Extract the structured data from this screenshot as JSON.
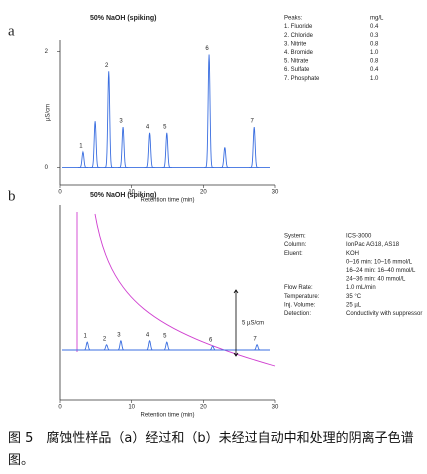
{
  "chart_data": [
    {
      "type": "chromatogram",
      "panel_label": "a",
      "title": "50% NaOH (spiking)",
      "title_color": "#2a5fd0",
      "color": "#3a6ee0",
      "x": [
        3.2,
        4.9,
        6.8,
        8.8,
        12.5,
        14.9,
        20.8,
        23,
        27.1
      ],
      "values": [
        0.27,
        0.8,
        1.66,
        0.7,
        0.6,
        0.6,
        1.95,
        0.35,
        0.7
      ],
      "peak_labels": [
        "1",
        null,
        "2",
        "3",
        "4",
        "5",
        "6",
        null,
        "7"
      ],
      "xlim": [
        0,
        30
      ],
      "xticks": [
        0,
        10,
        20,
        30
      ],
      "ylim": [
        -0.3,
        2.2
      ],
      "yticks": [
        0,
        2
      ],
      "xlabel": "Retention time (min)",
      "ylabel": "µS/cm",
      "info": [
        [
          "Peaks:",
          "mg/L"
        ],
        [
          "1. Fluoride",
          "0.4"
        ],
        [
          "2. Chloride",
          "0.3"
        ],
        [
          "3. Nitrite",
          "0.8"
        ],
        [
          "4. Bromide",
          "1.0"
        ],
        [
          "5. Nitrate",
          "0.8"
        ],
        [
          "6. Sulfate",
          "0.4"
        ],
        [
          "7. Phosphate",
          "1.0"
        ]
      ]
    },
    {
      "type": "chromatogram",
      "panel_label": "b",
      "title": "50% NaOH (spiking)",
      "title_color": "#c020c0",
      "color": "#3a6ee0",
      "x": [
        3.8,
        6.5,
        8.5,
        12.5,
        14.9,
        21.3,
        27.5
      ],
      "values": [
        0.6,
        0.4,
        0.7,
        0.7,
        0.6,
        0.3,
        0.4
      ],
      "peak_labels": [
        "1",
        "2",
        "3",
        "4",
        "5",
        "6",
        "7"
      ],
      "xlim": [
        0,
        30
      ],
      "xticks": [
        0,
        10,
        20,
        30
      ],
      "xlabel": "Retention time (min)",
      "scale_bar": {
        "value": 5,
        "label": "5 µS/cm"
      },
      "info": [
        [
          "System:",
          "ICS-3000"
        ],
        [
          "Column:",
          "IonPac AG18, AS18"
        ],
        [
          "Eluent:",
          "KOH",
          "0–16 min: 10–16 mmol/L",
          "16–24 min: 16–40 mmol/L",
          "24–36 min: 40 mmol/L"
        ],
        [
          "Flow Rate:",
          "1.0 mL/min"
        ],
        [
          "Temperature:",
          "35 °C"
        ],
        [
          "Inj. Volume:",
          "25 µL"
        ],
        [
          "Detection:",
          "Conductivity with suppressor"
        ]
      ]
    }
  ],
  "caption": "图 5　腐蚀性样品（a）经过和（b）未经过自动中和处理的阴离子色谱图。"
}
